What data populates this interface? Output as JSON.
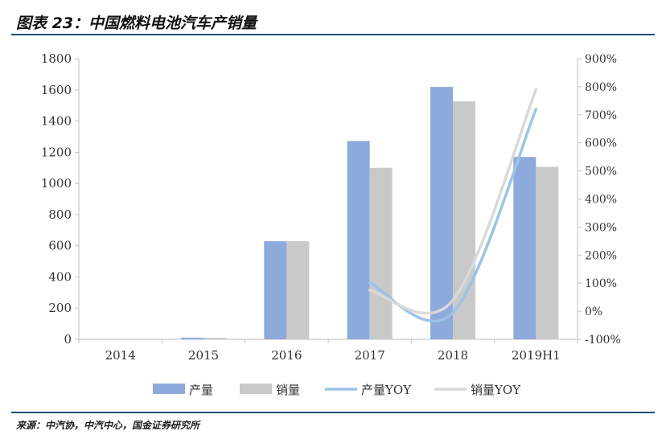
{
  "header": {
    "title": "图表 23：中国燃料电池汽车产销量"
  },
  "footer": {
    "source": "来源：中汽协，中汽中心，国金证券研究所"
  },
  "colors": {
    "production_bar": "#8ea9dc",
    "sales_bar": "#c9c9c9",
    "production_yoy_line": "#9dc3e6",
    "sales_yoy_line": "#d9d9d9",
    "axis": "#bfbfbf",
    "text": "#333333"
  },
  "chart_data": {
    "type": "bar",
    "categories": [
      "2014",
      "2015",
      "2016",
      "2017",
      "2018",
      "2019H1"
    ],
    "series": [
      {
        "name": "产量",
        "kind": "bar",
        "axis": "left",
        "values": [
          0,
          10,
          629,
          1272,
          1619,
          1170
        ]
      },
      {
        "name": "销量",
        "kind": "bar",
        "axis": "left",
        "values": [
          0,
          10,
          629,
          1100,
          1527,
          1106
        ]
      },
      {
        "name": "产量YOY",
        "kind": "line",
        "axis": "right",
        "values": [
          null,
          null,
          null,
          102,
          -5,
          720
        ]
      },
      {
        "name": "销量YOY",
        "kind": "line",
        "axis": "right",
        "values": [
          null,
          null,
          null,
          75,
          39,
          790
        ]
      }
    ],
    "y_left": {
      "ylim": [
        0,
        1800
      ],
      "ticks": [
        "0",
        "200",
        "400",
        "600",
        "800",
        "1000",
        "1200",
        "1400",
        "1600",
        "1800"
      ]
    },
    "y_right": {
      "ylim": [
        -100,
        900
      ],
      "ticks": [
        "-100%",
        "0%",
        "100%",
        "200%",
        "300%",
        "400%",
        "500%",
        "600%",
        "700%",
        "800%",
        "900%"
      ]
    },
    "grid": false,
    "legend_position": "bottom"
  }
}
